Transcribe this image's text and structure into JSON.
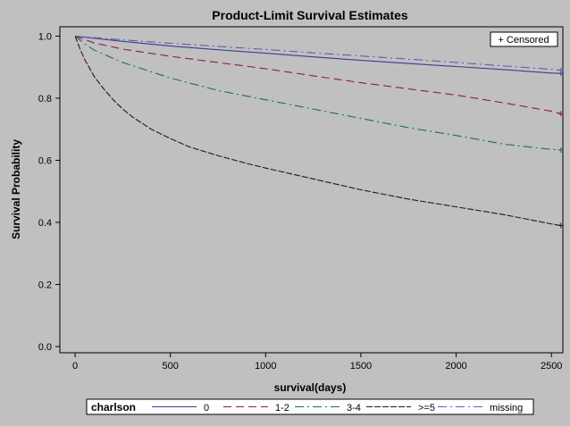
{
  "chart_data": {
    "type": "line",
    "title": "Product-Limit Survival Estimates",
    "xlabel": "survival(days)",
    "ylabel": "Survival Probability",
    "xlim": [
      -80,
      2560
    ],
    "ylim": [
      -0.02,
      1.03
    ],
    "x_ticks": [
      0,
      500,
      1000,
      1500,
      2000,
      2500
    ],
    "y_ticks": [
      0.0,
      0.2,
      0.4,
      0.6,
      0.8,
      1.0
    ],
    "x_tick_labels": [
      "0",
      "500",
      "1000",
      "1500",
      "2000",
      "2500"
    ],
    "y_tick_labels": [
      "0.0",
      "0.2",
      "0.4",
      "0.6",
      "0.8",
      "1.0"
    ],
    "grid": false,
    "censored_legend": "+ Censored",
    "legend_title": "charlson",
    "legend_position": "bottom",
    "series": [
      {
        "name": "0",
        "color": "#3b3b9a",
        "dash": "solid",
        "x": [
          0,
          100,
          250,
          500,
          750,
          1000,
          1250,
          1500,
          1750,
          2000,
          2250,
          2500,
          2550
        ],
        "y": [
          1.0,
          0.993,
          0.983,
          0.968,
          0.956,
          0.945,
          0.933,
          0.922,
          0.912,
          0.902,
          0.892,
          0.881,
          0.88
        ]
      },
      {
        "name": "1-2",
        "color": "#8b1a4a",
        "dash": "long-dash",
        "x": [
          0,
          100,
          250,
          500,
          750,
          1000,
          1250,
          1500,
          1750,
          2000,
          2250,
          2500,
          2550
        ],
        "y": [
          1.0,
          0.978,
          0.958,
          0.935,
          0.915,
          0.895,
          0.872,
          0.85,
          0.83,
          0.81,
          0.785,
          0.758,
          0.75
        ]
      },
      {
        "name": "3-4",
        "color": "#1e6b5a",
        "dash": "dash-dot",
        "x": [
          0,
          50,
          100,
          250,
          500,
          750,
          1000,
          1250,
          1500,
          1750,
          2000,
          2250,
          2500,
          2550
        ],
        "y": [
          1.0,
          0.975,
          0.955,
          0.915,
          0.865,
          0.825,
          0.795,
          0.765,
          0.735,
          0.705,
          0.68,
          0.652,
          0.635,
          0.633
        ]
      },
      {
        "name": ">=5",
        "color": "#2b1a0a",
        "dash": "long-dash-fine",
        "x": [
          0,
          25,
          50,
          100,
          150,
          200,
          250,
          300,
          400,
          500,
          600,
          750,
          900,
          1000,
          1250,
          1500,
          1750,
          2000,
          2250,
          2500,
          2550
        ],
        "y": [
          1.0,
          0.96,
          0.925,
          0.87,
          0.83,
          0.795,
          0.765,
          0.74,
          0.7,
          0.67,
          0.643,
          0.615,
          0.59,
          0.575,
          0.54,
          0.505,
          0.475,
          0.45,
          0.425,
          0.395,
          0.39
        ]
      },
      {
        "name": "missing",
        "color": "#6a5aa8",
        "dash": "dash-dot",
        "x": [
          0,
          100,
          250,
          500,
          750,
          1000,
          1250,
          1500,
          1750,
          2000,
          2250,
          2500,
          2550
        ],
        "y": [
          1.0,
          0.995,
          0.988,
          0.977,
          0.967,
          0.957,
          0.946,
          0.936,
          0.926,
          0.915,
          0.904,
          0.893,
          0.89
        ]
      }
    ],
    "censored_marks": [
      {
        "series": "0",
        "x": 2550,
        "y": 0.88
      },
      {
        "series": "1-2",
        "x": 2550,
        "y": 0.75
      },
      {
        "series": "3-4",
        "x": 2550,
        "y": 0.633
      },
      {
        "series": ">=5",
        "x": 2550,
        "y": 0.39
      },
      {
        "series": "missing",
        "x": 2550,
        "y": 0.89
      }
    ]
  }
}
